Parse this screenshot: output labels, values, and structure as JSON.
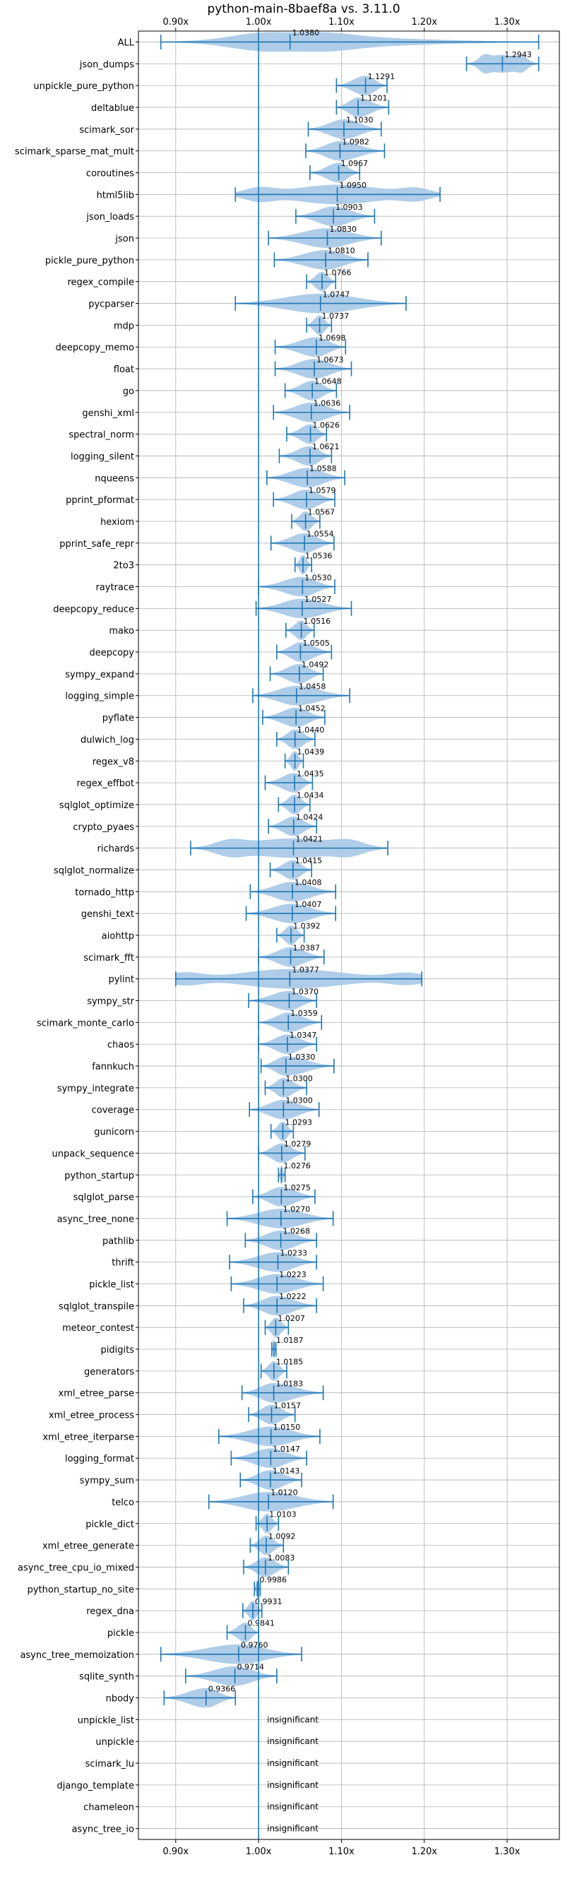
{
  "chart_data": {
    "type": "violin",
    "title": "python-main-8baef8a vs. 3.11.0",
    "xlim": [
      0.855,
      1.363
    ],
    "xticks": [
      0.9,
      1.0,
      1.1,
      1.2,
      1.3
    ],
    "xtick_labels": [
      "0.90x",
      "1.00x",
      "1.10x",
      "1.20x",
      "1.30x"
    ],
    "reference_x": 1.0,
    "grid": true,
    "accent_color": "#1f77b4",
    "violin_color": "#a6c8e6",
    "benchmarks": [
      {
        "name": "ALL",
        "mean": 1.038,
        "label": "1.0380",
        "min": 0.882,
        "max": 1.338,
        "width": 0.45,
        "q1": 1.0,
        "q3": 1.082
      },
      {
        "name": "json_dumps",
        "mean": 1.2943,
        "label": "1.2943",
        "min": 1.251,
        "max": 1.338,
        "width": 0.45,
        "q1": 1.272,
        "q3": 1.318
      },
      {
        "name": "unpickle_pure_python",
        "mean": 1.1291,
        "label": "1.1291",
        "min": 1.094,
        "max": 1.155,
        "width": 0.45
      },
      {
        "name": "deltablue",
        "mean": 1.1201,
        "label": "1.1201",
        "min": 1.094,
        "max": 1.157,
        "width": 0.45
      },
      {
        "name": "scimark_sor",
        "mean": 1.103,
        "label": "1.1030",
        "min": 1.06,
        "max": 1.148,
        "width": 0.45
      },
      {
        "name": "scimark_sparse_mat_mult",
        "mean": 1.0982,
        "label": "1.0982",
        "min": 1.057,
        "max": 1.152,
        "width": 0.45
      },
      {
        "name": "coroutines",
        "mean": 1.0967,
        "label": "1.0967",
        "min": 1.062,
        "max": 1.122,
        "width": 0.45
      },
      {
        "name": "html5lib",
        "mean": 1.095,
        "label": "1.0950",
        "min": 0.972,
        "max": 1.219,
        "width": 0.45,
        "q1": 1.0,
        "q3": 1.19
      },
      {
        "name": "json_loads",
        "mean": 1.0903,
        "label": "1.0903",
        "min": 1.045,
        "max": 1.14,
        "width": 0.45
      },
      {
        "name": "json",
        "mean": 1.083,
        "label": "1.0830",
        "min": 1.012,
        "max": 1.148,
        "width": 0.45
      },
      {
        "name": "pickle_pure_python",
        "mean": 1.081,
        "label": "1.0810",
        "min": 1.019,
        "max": 1.132,
        "width": 0.45
      },
      {
        "name": "regex_compile",
        "mean": 1.0766,
        "label": "1.0766",
        "min": 1.058,
        "max": 1.093,
        "width": 0.45
      },
      {
        "name": "pycparser",
        "mean": 1.0747,
        "label": "1.0747",
        "min": 0.972,
        "max": 1.178,
        "width": 0.45
      },
      {
        "name": "mdp",
        "mean": 1.0737,
        "label": "1.0737",
        "min": 1.058,
        "max": 1.088,
        "width": 0.45
      },
      {
        "name": "deepcopy_memo",
        "mean": 1.0698,
        "label": "1.0698",
        "min": 1.02,
        "max": 1.105,
        "width": 0.45
      },
      {
        "name": "float",
        "mean": 1.0673,
        "label": "1.0673",
        "min": 1.02,
        "max": 1.112,
        "width": 0.45
      },
      {
        "name": "go",
        "mean": 1.0648,
        "label": "1.0648",
        "min": 1.032,
        "max": 1.094,
        "width": 0.45
      },
      {
        "name": "genshi_xml",
        "mean": 1.0636,
        "label": "1.0636",
        "min": 1.018,
        "max": 1.11,
        "width": 0.45
      },
      {
        "name": "spectral_norm",
        "mean": 1.0626,
        "label": "1.0626",
        "min": 1.034,
        "max": 1.082,
        "width": 0.45
      },
      {
        "name": "logging_silent",
        "mean": 1.0621,
        "label": "1.0621",
        "min": 1.025,
        "max": 1.088,
        "width": 0.45
      },
      {
        "name": "nqueens",
        "mean": 1.0588,
        "label": "1.0588",
        "min": 1.01,
        "max": 1.104,
        "width": 0.45
      },
      {
        "name": "pprint_pformat",
        "mean": 1.0579,
        "label": "1.0579",
        "min": 1.018,
        "max": 1.092,
        "width": 0.45
      },
      {
        "name": "hexiom",
        "mean": 1.0567,
        "label": "1.0567",
        "min": 1.04,
        "max": 1.074,
        "width": 0.45
      },
      {
        "name": "pprint_safe_repr",
        "mean": 1.0554,
        "label": "1.0554",
        "min": 1.015,
        "max": 1.091,
        "width": 0.45
      },
      {
        "name": "2to3",
        "mean": 1.0536,
        "label": "1.0536",
        "min": 1.044,
        "max": 1.064,
        "width": 0.45
      },
      {
        "name": "raytrace",
        "mean": 1.053,
        "label": "1.0530",
        "min": 1.0,
        "max": 1.092,
        "width": 0.45
      },
      {
        "name": "deepcopy_reduce",
        "mean": 1.0527,
        "label": "1.0527",
        "min": 0.997,
        "max": 1.112,
        "width": 0.45
      },
      {
        "name": "mako",
        "mean": 1.0516,
        "label": "1.0516",
        "min": 1.033,
        "max": 1.067,
        "width": 0.45
      },
      {
        "name": "deepcopy",
        "mean": 1.0505,
        "label": "1.0505",
        "min": 1.022,
        "max": 1.088,
        "width": 0.45
      },
      {
        "name": "sympy_expand",
        "mean": 1.0492,
        "label": "1.0492",
        "min": 1.014,
        "max": 1.078,
        "width": 0.45
      },
      {
        "name": "logging_simple",
        "mean": 1.0458,
        "label": "1.0458",
        "min": 0.993,
        "max": 1.11,
        "width": 0.45
      },
      {
        "name": "pyflate",
        "mean": 1.0452,
        "label": "1.0452",
        "min": 1.005,
        "max": 1.08,
        "width": 0.45
      },
      {
        "name": "dulwich_log",
        "mean": 1.044,
        "label": "1.0440",
        "min": 1.022,
        "max": 1.068,
        "width": 0.45
      },
      {
        "name": "regex_v8",
        "mean": 1.0439,
        "label": "1.0439",
        "min": 1.032,
        "max": 1.054,
        "width": 0.45
      },
      {
        "name": "regex_effbot",
        "mean": 1.0435,
        "label": "1.0435",
        "min": 1.008,
        "max": 1.065,
        "width": 0.45
      },
      {
        "name": "sqlglot_optimize",
        "mean": 1.0434,
        "label": "1.0434",
        "min": 1.024,
        "max": 1.062,
        "width": 0.45
      },
      {
        "name": "crypto_pyaes",
        "mean": 1.0424,
        "label": "1.0424",
        "min": 1.012,
        "max": 1.07,
        "width": 0.45
      },
      {
        "name": "richards",
        "mean": 1.0421,
        "label": "1.0421",
        "min": 0.918,
        "max": 1.156,
        "width": 0.45,
        "q1": 0.965,
        "q3": 1.11
      },
      {
        "name": "sqlglot_normalize",
        "mean": 1.0415,
        "label": "1.0415",
        "min": 1.014,
        "max": 1.064,
        "width": 0.45
      },
      {
        "name": "tornado_http",
        "mean": 1.0408,
        "label": "1.0408",
        "min": 0.99,
        "max": 1.093,
        "width": 0.45
      },
      {
        "name": "genshi_text",
        "mean": 1.0407,
        "label": "1.0407",
        "min": 0.985,
        "max": 1.093,
        "width": 0.45
      },
      {
        "name": "aiohttp",
        "mean": 1.0392,
        "label": "1.0392",
        "min": 1.022,
        "max": 1.055,
        "width": 0.45
      },
      {
        "name": "scimark_fft",
        "mean": 1.0387,
        "label": "1.0387",
        "min": 1.0,
        "max": 1.079,
        "width": 0.45
      },
      {
        "name": "pylint",
        "mean": 1.0377,
        "label": "1.0377",
        "min": 0.9,
        "max": 1.197,
        "width": 0.45,
        "q1": 0.91,
        "q3": 1.18
      },
      {
        "name": "sympy_str",
        "mean": 1.037,
        "label": "1.0370",
        "min": 0.988,
        "max": 1.07,
        "width": 0.45
      },
      {
        "name": "scimark_monte_carlo",
        "mean": 1.0359,
        "label": "1.0359",
        "min": 1.0,
        "max": 1.076,
        "width": 0.45
      },
      {
        "name": "chaos",
        "mean": 1.0347,
        "label": "1.0347",
        "min": 1.0,
        "max": 1.07,
        "width": 0.45
      },
      {
        "name": "fannkuch",
        "mean": 1.033,
        "label": "1.0330",
        "min": 1.003,
        "max": 1.091,
        "width": 0.45
      },
      {
        "name": "sympy_integrate",
        "mean": 1.03,
        "label": "1.0300",
        "min": 1.008,
        "max": 1.058,
        "width": 0.45
      },
      {
        "name": "coverage",
        "mean": 1.03,
        "label": "1.0300",
        "min": 0.989,
        "max": 1.073,
        "width": 0.45
      },
      {
        "name": "gunicorn",
        "mean": 1.0293,
        "label": "1.0293",
        "min": 1.015,
        "max": 1.042,
        "width": 0.45
      },
      {
        "name": "unpack_sequence",
        "mean": 1.0279,
        "label": "1.0279",
        "min": 1.0,
        "max": 1.056,
        "width": 0.45
      },
      {
        "name": "python_startup",
        "mean": 1.0276,
        "label": "1.0276",
        "min": 1.024,
        "max": 1.032,
        "width": 0.45
      },
      {
        "name": "sqlglot_parse",
        "mean": 1.0275,
        "label": "1.0275",
        "min": 0.993,
        "max": 1.068,
        "width": 0.45
      },
      {
        "name": "async_tree_none",
        "mean": 1.027,
        "label": "1.0270",
        "min": 0.962,
        "max": 1.09,
        "width": 0.45
      },
      {
        "name": "pathlib",
        "mean": 1.0268,
        "label": "1.0268",
        "min": 0.984,
        "max": 1.07,
        "width": 0.45
      },
      {
        "name": "thrift",
        "mean": 1.0233,
        "label": "1.0233",
        "min": 0.965,
        "max": 1.07,
        "width": 0.45
      },
      {
        "name": "pickle_list",
        "mean": 1.0223,
        "label": "1.0223",
        "min": 0.967,
        "max": 1.078,
        "width": 0.45
      },
      {
        "name": "sqlglot_transpile",
        "mean": 1.0222,
        "label": "1.0222",
        "min": 0.982,
        "max": 1.07,
        "width": 0.45
      },
      {
        "name": "meteor_contest",
        "mean": 1.0207,
        "label": "1.0207",
        "min": 1.008,
        "max": 1.036,
        "width": 0.45
      },
      {
        "name": "pidigits",
        "mean": 1.0187,
        "label": "1.0187",
        "min": 1.016,
        "max": 1.021,
        "width": 0.45
      },
      {
        "name": "generators",
        "mean": 1.0185,
        "label": "1.0185",
        "min": 1.003,
        "max": 1.034,
        "width": 0.45
      },
      {
        "name": "xml_etree_parse",
        "mean": 1.0183,
        "label": "1.0183",
        "min": 0.98,
        "max": 1.078,
        "width": 0.45
      },
      {
        "name": "xml_etree_process",
        "mean": 1.0157,
        "label": "1.0157",
        "min": 0.988,
        "max": 1.044,
        "width": 0.45
      },
      {
        "name": "xml_etree_iterparse",
        "mean": 1.015,
        "label": "1.0150",
        "min": 0.952,
        "max": 1.074,
        "width": 0.45
      },
      {
        "name": "logging_format",
        "mean": 1.0147,
        "label": "1.0147",
        "min": 0.967,
        "max": 1.058,
        "width": 0.45
      },
      {
        "name": "sympy_sum",
        "mean": 1.0143,
        "label": "1.0143",
        "min": 0.978,
        "max": 1.052,
        "width": 0.45
      },
      {
        "name": "telco",
        "mean": 1.012,
        "label": "1.0120",
        "min": 0.94,
        "max": 1.09,
        "width": 0.45
      },
      {
        "name": "pickle_dict",
        "mean": 1.0103,
        "label": "1.0103",
        "min": 0.997,
        "max": 1.024,
        "width": 0.45
      },
      {
        "name": "xml_etree_generate",
        "mean": 1.0092,
        "label": "1.0092",
        "min": 0.99,
        "max": 1.03,
        "width": 0.45
      },
      {
        "name": "async_tree_cpu_io_mixed",
        "mean": 1.0083,
        "label": "1.0083",
        "min": 0.982,
        "max": 1.036,
        "width": 0.45
      },
      {
        "name": "python_startup_no_site",
        "mean": 0.9986,
        "label": "0.9986",
        "min": 0.995,
        "max": 1.002,
        "width": 0.45
      },
      {
        "name": "regex_dna",
        "mean": 0.9931,
        "label": "0.9931",
        "min": 0.981,
        "max": 1.004,
        "width": 0.45
      },
      {
        "name": "pickle",
        "mean": 0.9841,
        "label": "0.9841",
        "min": 0.962,
        "max": 1.0,
        "width": 0.45
      },
      {
        "name": "async_tree_memoization",
        "mean": 0.976,
        "label": "0.9760",
        "min": 0.882,
        "max": 1.052,
        "width": 0.45
      },
      {
        "name": "sqlite_synth",
        "mean": 0.9714,
        "label": "0.9714",
        "min": 0.912,
        "max": 1.022,
        "width": 0.45
      },
      {
        "name": "nbody",
        "mean": 0.9366,
        "label": "0.9366",
        "min": 0.886,
        "max": 0.972,
        "width": 0.45
      },
      {
        "name": "unpickle_list",
        "insignificant": true,
        "label": "insignificant"
      },
      {
        "name": "unpickle",
        "insignificant": true,
        "label": "insignificant"
      },
      {
        "name": "scimark_lu",
        "insignificant": true,
        "label": "insignificant"
      },
      {
        "name": "django_template",
        "insignificant": true,
        "label": "insignificant"
      },
      {
        "name": "chameleon",
        "insignificant": true,
        "label": "insignificant"
      },
      {
        "name": "async_tree_io",
        "insignificant": true,
        "label": "insignificant"
      }
    ]
  }
}
